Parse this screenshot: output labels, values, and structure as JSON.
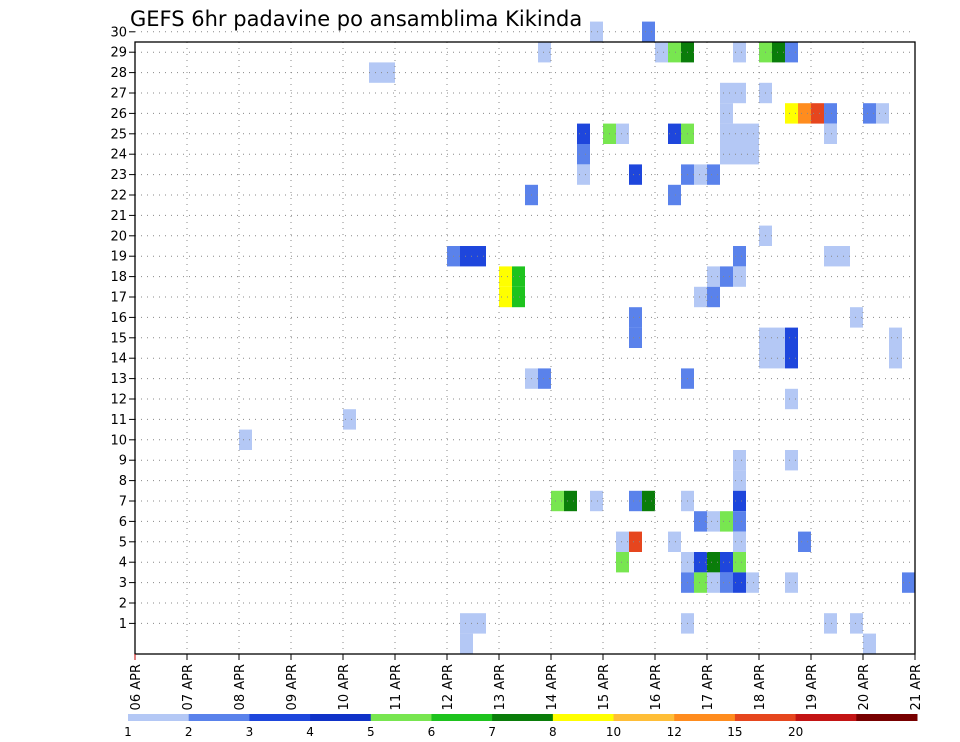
{
  "chart_data": {
    "type": "heatmap",
    "title": "GEFS 6hr padavine po ansamblima Kikinda",
    "xlabel": "",
    "ylabel": "",
    "x_tick_labels": [
      "06 APR",
      "07 APR",
      "08 APR",
      "09 APR",
      "10 APR",
      "11 APR",
      "12 APR",
      "13 APR",
      "14 APR",
      "15 APR",
      "16 APR",
      "17 APR",
      "18 APR",
      "19 APR",
      "20 APR",
      "21 APR"
    ],
    "y_tick_labels": [
      "1",
      "2",
      "3",
      "4",
      "5",
      "6",
      "7",
      "8",
      "9",
      "10",
      "11",
      "12",
      "13",
      "14",
      "15",
      "16",
      "17",
      "18",
      "19",
      "20",
      "21",
      "22",
      "23",
      "24",
      "25",
      "26",
      "27",
      "28",
      "29",
      "30"
    ],
    "steps_per_day": 4,
    "grid": "dotted",
    "colorbar": {
      "labels": [
        "1",
        "2",
        "3",
        "4",
        "5",
        "6",
        "7",
        "8",
        "10",
        "12",
        "15",
        "20"
      ],
      "colors": [
        "#b4c8f5",
        "#5a82eb",
        "#1e46dc",
        "#0f32c8",
        "#78e650",
        "#1ec31e",
        "#0a7d0a",
        "#ffff00",
        "#ffbe37",
        "#ff8c1e",
        "#e6461e",
        "#c31414",
        "#780000"
      ]
    },
    "cell_note": "each cell: member (1-30), step index from 06 APR 00z (6-hour steps), color class index into colorbar.colors",
    "cells": [
      {
        "member": 30,
        "step": 35,
        "c": 0
      },
      {
        "member": 30,
        "step": 39,
        "c": 1
      },
      {
        "member": 29,
        "step": 31,
        "c": 0
      },
      {
        "member": 29,
        "step": 40,
        "c": 0
      },
      {
        "member": 29,
        "step": 41,
        "c": 4
      },
      {
        "member": 29,
        "step": 42,
        "c": 6
      },
      {
        "member": 29,
        "step": 46,
        "c": 0
      },
      {
        "member": 29,
        "step": 48,
        "c": 4
      },
      {
        "member": 29,
        "step": 49,
        "c": 6
      },
      {
        "member": 29,
        "step": 50,
        "c": 1
      },
      {
        "member": 28,
        "step": 18,
        "c": 0
      },
      {
        "member": 28,
        "step": 19,
        "c": 0
      },
      {
        "member": 27,
        "step": 45,
        "c": 0
      },
      {
        "member": 27,
        "step": 46,
        "c": 0
      },
      {
        "member": 27,
        "step": 48,
        "c": 0
      },
      {
        "member": 26,
        "step": 45,
        "c": 0
      },
      {
        "member": 26,
        "step": 50,
        "c": 7
      },
      {
        "member": 26,
        "step": 51,
        "c": 9
      },
      {
        "member": 26,
        "step": 52,
        "c": 10
      },
      {
        "member": 26,
        "step": 53,
        "c": 1
      },
      {
        "member": 26,
        "step": 56,
        "c": 1
      },
      {
        "member": 26,
        "step": 57,
        "c": 0
      },
      {
        "member": 25,
        "step": 34,
        "c": 2
      },
      {
        "member": 25,
        "step": 36,
        "c": 4
      },
      {
        "member": 25,
        "step": 37,
        "c": 0
      },
      {
        "member": 25,
        "step": 41,
        "c": 2
      },
      {
        "member": 25,
        "step": 42,
        "c": 4
      },
      {
        "member": 25,
        "step": 45,
        "c": 0
      },
      {
        "member": 25,
        "step": 46,
        "c": 0
      },
      {
        "member": 25,
        "step": 47,
        "c": 0
      },
      {
        "member": 25,
        "step": 53,
        "c": 0
      },
      {
        "member": 24,
        "step": 34,
        "c": 1
      },
      {
        "member": 24,
        "step": 45,
        "c": 0
      },
      {
        "member": 24,
        "step": 46,
        "c": 0
      },
      {
        "member": 24,
        "step": 47,
        "c": 0
      },
      {
        "member": 23,
        "step": 34,
        "c": 0
      },
      {
        "member": 23,
        "step": 38,
        "c": 2
      },
      {
        "member": 23,
        "step": 42,
        "c": 1
      },
      {
        "member": 23,
        "step": 43,
        "c": 0
      },
      {
        "member": 23,
        "step": 44,
        "c": 1
      },
      {
        "member": 22,
        "step": 30,
        "c": 1
      },
      {
        "member": 22,
        "step": 41,
        "c": 1
      },
      {
        "member": 20,
        "step": 48,
        "c": 0
      },
      {
        "member": 19,
        "step": 24,
        "c": 1
      },
      {
        "member": 19,
        "step": 25,
        "c": 2
      },
      {
        "member": 19,
        "step": 26,
        "c": 2
      },
      {
        "member": 19,
        "step": 46,
        "c": 1
      },
      {
        "member": 19,
        "step": 53,
        "c": 0
      },
      {
        "member": 19,
        "step": 54,
        "c": 0
      },
      {
        "member": 18,
        "step": 28,
        "c": 7
      },
      {
        "member": 18,
        "step": 29,
        "c": 5
      },
      {
        "member": 18,
        "step": 46,
        "c": 0
      },
      {
        "member": 18,
        "step": 45,
        "c": 1
      },
      {
        "member": 18,
        "step": 44,
        "c": 0
      },
      {
        "member": 17,
        "step": 28,
        "c": 7
      },
      {
        "member": 17,
        "step": 29,
        "c": 5
      },
      {
        "member": 17,
        "step": 43,
        "c": 0
      },
      {
        "member": 17,
        "step": 44,
        "c": 1
      },
      {
        "member": 16,
        "step": 38,
        "c": 1
      },
      {
        "member": 16,
        "step": 55,
        "c": 0
      },
      {
        "member": 15,
        "step": 38,
        "c": 1
      },
      {
        "member": 15,
        "step": 48,
        "c": 0
      },
      {
        "member": 15,
        "step": 49,
        "c": 0
      },
      {
        "member": 15,
        "step": 50,
        "c": 2
      },
      {
        "member": 15,
        "step": 58,
        "c": 0
      },
      {
        "member": 14,
        "step": 48,
        "c": 0
      },
      {
        "member": 14,
        "step": 49,
        "c": 0
      },
      {
        "member": 14,
        "step": 50,
        "c": 2
      },
      {
        "member": 14,
        "step": 58,
        "c": 0
      },
      {
        "member": 13,
        "step": 30,
        "c": 0
      },
      {
        "member": 13,
        "step": 31,
        "c": 1
      },
      {
        "member": 13,
        "step": 42,
        "c": 1
      },
      {
        "member": 12,
        "step": 50,
        "c": 0
      },
      {
        "member": 11,
        "step": 16,
        "c": 0
      },
      {
        "member": 10,
        "step": 8,
        "c": 0
      },
      {
        "member": 9,
        "step": 46,
        "c": 0
      },
      {
        "member": 9,
        "step": 50,
        "c": 0
      },
      {
        "member": 8,
        "step": 46,
        "c": 0
      },
      {
        "member": 7,
        "step": 32,
        "c": 4
      },
      {
        "member": 7,
        "step": 33,
        "c": 6
      },
      {
        "member": 7,
        "step": 35,
        "c": 0
      },
      {
        "member": 7,
        "step": 38,
        "c": 1
      },
      {
        "member": 7,
        "step": 39,
        "c": 6
      },
      {
        "member": 7,
        "step": 42,
        "c": 0
      },
      {
        "member": 7,
        "step": 46,
        "c": 2
      },
      {
        "member": 6,
        "step": 43,
        "c": 1
      },
      {
        "member": 6,
        "step": 44,
        "c": 0
      },
      {
        "member": 6,
        "step": 45,
        "c": 4
      },
      {
        "member": 6,
        "step": 46,
        "c": 1
      },
      {
        "member": 5,
        "step": 37,
        "c": 0
      },
      {
        "member": 5,
        "step": 38,
        "c": 10
      },
      {
        "member": 5,
        "step": 41,
        "c": 0
      },
      {
        "member": 5,
        "step": 46,
        "c": 0
      },
      {
        "member": 5,
        "step": 51,
        "c": 1
      },
      {
        "member": 4,
        "step": 37,
        "c": 4
      },
      {
        "member": 4,
        "step": 42,
        "c": 0
      },
      {
        "member": 4,
        "step": 43,
        "c": 2
      },
      {
        "member": 4,
        "step": 44,
        "c": 6
      },
      {
        "member": 4,
        "step": 45,
        "c": 2
      },
      {
        "member": 4,
        "step": 46,
        "c": 4
      },
      {
        "member": 3,
        "step": 42,
        "c": 1
      },
      {
        "member": 3,
        "step": 43,
        "c": 4
      },
      {
        "member": 3,
        "step": 44,
        "c": 0
      },
      {
        "member": 3,
        "step": 45,
        "c": 1
      },
      {
        "member": 3,
        "step": 46,
        "c": 2
      },
      {
        "member": 3,
        "step": 47,
        "c": 0
      },
      {
        "member": 3,
        "step": 50,
        "c": 0
      },
      {
        "member": 3,
        "step": 59,
        "c": 1
      },
      {
        "member": 1,
        "step": 25,
        "c": 0
      },
      {
        "member": 1,
        "step": 26,
        "c": 0
      },
      {
        "member": 1,
        "step": 42,
        "c": 0
      },
      {
        "member": 1,
        "step": 53,
        "c": 0
      },
      {
        "member": 1,
        "step": 55,
        "c": 0
      },
      {
        "member": 0,
        "step": 25,
        "c": 0
      },
      {
        "member": 0,
        "step": 56,
        "c": 0
      }
    ]
  }
}
